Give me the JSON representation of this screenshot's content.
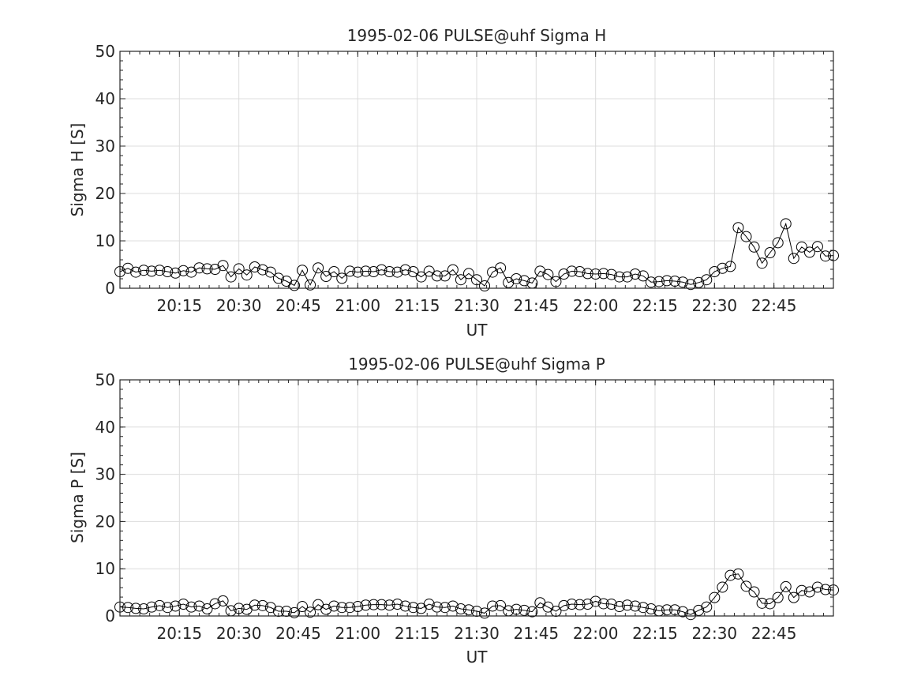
{
  "chart_data": [
    {
      "type": "line",
      "title": "1995-02-06  PULSE@uhf Sigma H",
      "xlabel": "UT",
      "ylabel": "Sigma H [S]",
      "ylim": [
        0,
        50
      ],
      "yticks": [
        0,
        10,
        20,
        30,
        40,
        50
      ],
      "xlim": [
        "20:00",
        "23:00"
      ],
      "xticks": [
        "20:15",
        "20:30",
        "20:45",
        "21:00",
        "21:15",
        "21:30",
        "21:45",
        "22:00",
        "22:15",
        "22:30",
        "22:45"
      ],
      "grid": true,
      "marker": "open-circle",
      "x": [
        "20:00",
        "20:02",
        "20:04",
        "20:06",
        "20:08",
        "20:10",
        "20:12",
        "20:14",
        "20:16",
        "20:18",
        "20:20",
        "20:22",
        "20:24",
        "20:26",
        "20:28",
        "20:30",
        "20:32",
        "20:34",
        "20:36",
        "20:38",
        "20:40",
        "20:42",
        "20:44",
        "20:46",
        "20:48",
        "20:50",
        "20:52",
        "20:54",
        "20:56",
        "20:58",
        "21:00",
        "21:02",
        "21:04",
        "21:06",
        "21:08",
        "21:10",
        "21:12",
        "21:14",
        "21:16",
        "21:18",
        "21:20",
        "21:22",
        "21:24",
        "21:26",
        "21:28",
        "21:30",
        "21:32",
        "21:34",
        "21:36",
        "21:38",
        "21:40",
        "21:42",
        "21:44",
        "21:46",
        "21:48",
        "21:50",
        "21:52",
        "21:54",
        "21:56",
        "21:58",
        "22:00",
        "22:02",
        "22:04",
        "22:06",
        "22:08",
        "22:10",
        "22:12",
        "22:14",
        "22:16",
        "22:18",
        "22:20",
        "22:22",
        "22:24",
        "22:26",
        "22:28",
        "22:30",
        "22:32",
        "22:34",
        "22:36",
        "22:38",
        "22:40",
        "22:42",
        "22:44",
        "22:46",
        "22:48",
        "22:50",
        "22:52",
        "22:54",
        "22:56",
        "22:58",
        "23:00"
      ],
      "y": [
        3.5,
        4.2,
        3.4,
        3.8,
        3.6,
        3.8,
        3.5,
        3.2,
        3.7,
        3.4,
        4.3,
        4.1,
        4.0,
        4.8,
        2.4,
        4.1,
        2.8,
        4.5,
        3.9,
        3.4,
        2.1,
        1.5,
        0.6,
        3.8,
        0.7,
        4.3,
        2.5,
        3.5,
        2.1,
        3.6,
        3.4,
        3.6,
        3.5,
        3.9,
        3.5,
        3.4,
        3.9,
        3.5,
        2.4,
        3.6,
        2.6,
        2.6,
        3.9,
        1.8,
        3.1,
        1.8,
        0.5,
        3.4,
        4.3,
        1.2,
        2.0,
        1.6,
        1.1,
        3.6,
        2.9,
        1.4,
        3.0,
        3.6,
        3.5,
        3.1,
        3.0,
        3.1,
        2.9,
        2.4,
        2.4,
        3.0,
        2.6,
        1.3,
        1.4,
        1.6,
        1.5,
        1.3,
        0.8,
        1.2,
        1.8,
        3.5,
        4.2,
        4.6,
        12.8,
        10.9,
        8.7,
        5.3,
        7.5,
        9.6,
        13.6,
        6.3,
        8.7,
        7.6,
        8.8,
        6.8,
        6.9
      ]
    },
    {
      "type": "line",
      "title": "1995-02-06  PULSE@uhf Sigma P",
      "xlabel": "UT",
      "ylabel": "Sigma P [S]",
      "ylim": [
        0,
        50
      ],
      "yticks": [
        0,
        10,
        20,
        30,
        40,
        50
      ],
      "xlim": [
        "20:00",
        "23:00"
      ],
      "xticks": [
        "20:15",
        "20:30",
        "20:45",
        "21:00",
        "21:15",
        "21:30",
        "21:45",
        "22:00",
        "22:15",
        "22:30",
        "22:45"
      ],
      "grid": true,
      "marker": "open-circle",
      "x": [
        "20:00",
        "20:02",
        "20:04",
        "20:06",
        "20:08",
        "20:10",
        "20:12",
        "20:14",
        "20:16",
        "20:18",
        "20:20",
        "20:22",
        "20:24",
        "20:26",
        "20:28",
        "20:30",
        "20:32",
        "20:34",
        "20:36",
        "20:38",
        "20:40",
        "20:42",
        "20:44",
        "20:46",
        "20:48",
        "20:50",
        "20:52",
        "20:54",
        "20:56",
        "20:58",
        "21:00",
        "21:02",
        "21:04",
        "21:06",
        "21:08",
        "21:10",
        "21:12",
        "21:14",
        "21:16",
        "21:18",
        "21:20",
        "21:22",
        "21:24",
        "21:26",
        "21:28",
        "21:30",
        "21:32",
        "21:34",
        "21:36",
        "21:38",
        "21:40",
        "21:42",
        "21:44",
        "21:46",
        "21:48",
        "21:50",
        "21:52",
        "21:54",
        "21:56",
        "21:58",
        "22:00",
        "22:02",
        "22:04",
        "22:06",
        "22:08",
        "22:10",
        "22:12",
        "22:14",
        "22:16",
        "22:18",
        "22:20",
        "22:22",
        "22:24",
        "22:26",
        "22:28",
        "22:30",
        "22:32",
        "22:34",
        "22:36",
        "22:38",
        "22:40",
        "22:42",
        "22:44",
        "22:46",
        "22:48",
        "22:50",
        "22:52",
        "22:54",
        "22:56",
        "22:58",
        "23:00"
      ],
      "y": [
        1.9,
        1.8,
        1.6,
        1.5,
        1.9,
        2.2,
        1.8,
        2.1,
        2.5,
        1.9,
        2.1,
        1.5,
        2.6,
        3.2,
        1.1,
        1.6,
        1.4,
        2.3,
        2.2,
        1.8,
        1.0,
        1.0,
        0.7,
        2.0,
        0.8,
        2.4,
        1.4,
        2.1,
        1.8,
        1.8,
        2.0,
        2.3,
        2.4,
        2.4,
        2.3,
        2.5,
        2.1,
        1.8,
        1.6,
        2.5,
        1.9,
        1.8,
        2.1,
        1.5,
        1.3,
        1.0,
        0.6,
        2.1,
        2.2,
        1.1,
        1.4,
        1.2,
        0.9,
        2.8,
        1.9,
        1.0,
        2.2,
        2.5,
        2.4,
        2.5,
        3.1,
        2.6,
        2.5,
        2.0,
        2.3,
        2.1,
        1.8,
        1.5,
        1.1,
        1.3,
        1.3,
        0.9,
        0.3,
        1.2,
        1.9,
        3.9,
        6.1,
        8.6,
        8.9,
        6.3,
        5.1,
        2.7,
        2.6,
        3.9,
        6.2,
        3.9,
        5.4,
        5.1,
        6.1,
        5.6,
        5.5
      ]
    }
  ]
}
